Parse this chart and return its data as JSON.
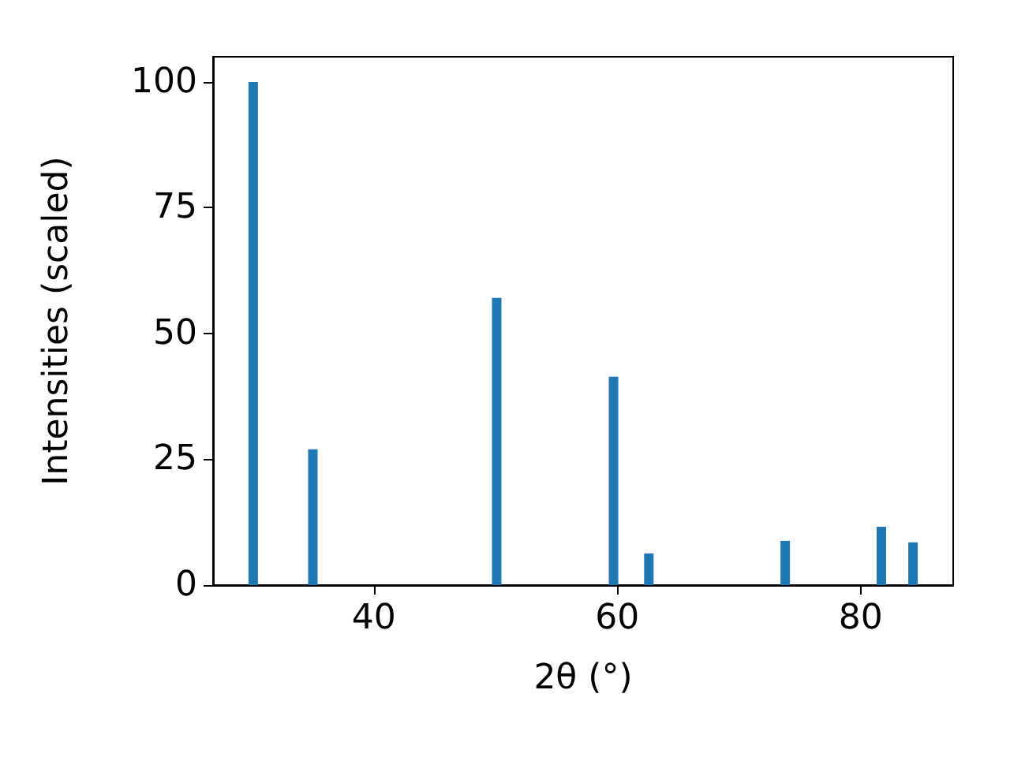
{
  "chart_data": {
    "type": "bar",
    "xlabel": "2θ (°)",
    "ylabel": "Intensities (scaled)",
    "x": [
      30.1,
      35.0,
      50.1,
      59.7,
      62.6,
      73.8,
      81.7,
      84.3
    ],
    "values": [
      100,
      27.0,
      57.1,
      41.4,
      6.3,
      8.8,
      11.6,
      8.5
    ],
    "color": "#1f77b4",
    "xlim": [
      26.8,
      87.6
    ],
    "xticks": [
      40,
      60,
      80
    ],
    "ylim": [
      0,
      105
    ],
    "yticks": [
      0,
      25,
      50,
      75,
      100
    ],
    "grid": false
  }
}
